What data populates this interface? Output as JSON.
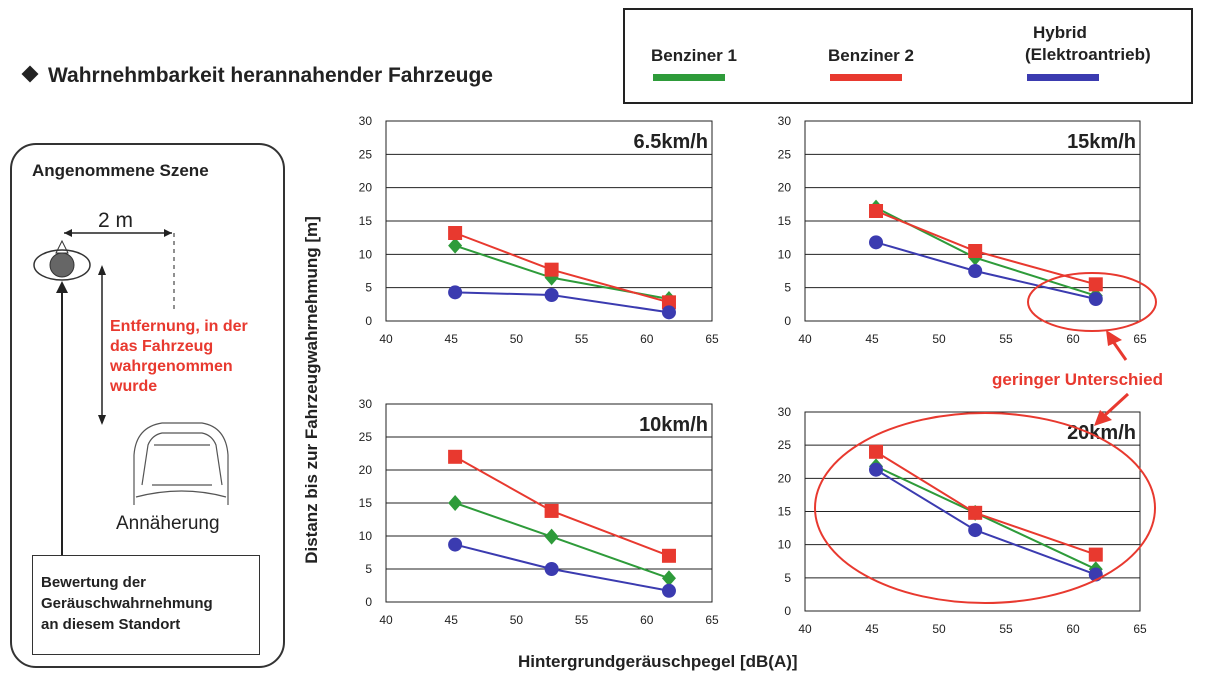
{
  "title": "Wahrnehmbarkeit herannahender Fahrzeuge",
  "legend": [
    {
      "label": "Benziner 1",
      "color": "#2e9b3a"
    },
    {
      "label": "Benziner 2",
      "color": "#e8392f"
    },
    {
      "label": "Hybrid (Elektroantrieb)",
      "line1": "Hybrid",
      "line2": "(Elektroantrieb)",
      "color": "#3b3bb0"
    }
  ],
  "scene": {
    "title": "Angenommene Szene",
    "distance": "2 m",
    "red_lines": [
      "Entfernung, in der",
      "das Fahrzeug",
      "wahrgenommen",
      "wurde"
    ],
    "approach": "Annäherung",
    "box_lines": [
      "Bewertung der",
      "Geräuschwahrnehmung",
      "an diesem Standort"
    ]
  },
  "axis": {
    "ylabel": "Distanz bis zur Fahrzeugwahrnehmung [m]",
    "xlabel": "Hintergrundgeräuschpegel [dB(A)]"
  },
  "annotation": "geringer Unterschied",
  "chart_data": [
    {
      "type": "line",
      "title": "6.5km/h",
      "x": [
        45.3,
        52.7,
        61.7
      ],
      "xlim": [
        40,
        65
      ],
      "ylim": [
        0,
        30
      ],
      "xticks": [
        40,
        45,
        50,
        55,
        60,
        65
      ],
      "yticks": [
        0,
        5,
        10,
        15,
        20,
        25,
        30
      ],
      "series": [
        {
          "name": "Benziner 1",
          "values": [
            11.3,
            6.5,
            3.3
          ]
        },
        {
          "name": "Benziner 2",
          "values": [
            13.2,
            7.7,
            2.8
          ]
        },
        {
          "name": "Hybrid (Elektroantrieb)",
          "values": [
            4.3,
            3.9,
            1.3
          ]
        }
      ]
    },
    {
      "type": "line",
      "title": "15km/h",
      "x": [
        45.3,
        52.7,
        61.7
      ],
      "xlim": [
        40,
        65
      ],
      "ylim": [
        0,
        30
      ],
      "xticks": [
        40,
        45,
        50,
        55,
        60,
        65
      ],
      "yticks": [
        0,
        5,
        10,
        15,
        20,
        25,
        30
      ],
      "series": [
        {
          "name": "Benziner 1",
          "values": [
            17.0,
            9.5,
            3.8
          ]
        },
        {
          "name": "Benziner 2",
          "values": [
            16.5,
            10.5,
            5.5
          ]
        },
        {
          "name": "Hybrid (Elektroantrieb)",
          "values": [
            11.8,
            7.5,
            3.3
          ]
        }
      ]
    },
    {
      "type": "line",
      "title": "10km/h",
      "x": [
        45.3,
        52.7,
        61.7
      ],
      "xlim": [
        40,
        65
      ],
      "ylim": [
        0,
        30
      ],
      "xticks": [
        40,
        45,
        50,
        55,
        60,
        65
      ],
      "yticks": [
        0,
        5,
        10,
        15,
        20,
        25,
        30
      ],
      "series": [
        {
          "name": "Benziner 1",
          "values": [
            15.0,
            9.9,
            3.6
          ]
        },
        {
          "name": "Benziner 2",
          "values": [
            22.0,
            13.8,
            7.0
          ]
        },
        {
          "name": "Hybrid (Elektroantrieb)",
          "values": [
            8.7,
            5.0,
            1.7
          ]
        }
      ]
    },
    {
      "type": "line",
      "title": "20km/h",
      "x": [
        45.3,
        52.7,
        61.7
      ],
      "xlim": [
        40,
        65
      ],
      "ylim": [
        0,
        30
      ],
      "xticks": [
        40,
        45,
        50,
        55,
        60,
        65
      ],
      "yticks": [
        0,
        5,
        10,
        15,
        20,
        25,
        30
      ],
      "series": [
        {
          "name": "Benziner 1",
          "values": [
            21.8,
            14.8,
            6.3
          ]
        },
        {
          "name": "Benziner 2",
          "values": [
            24.0,
            14.8,
            8.5
          ]
        },
        {
          "name": "Hybrid (Elektroantrieb)",
          "values": [
            21.3,
            12.2,
            5.5
          ]
        }
      ]
    }
  ]
}
